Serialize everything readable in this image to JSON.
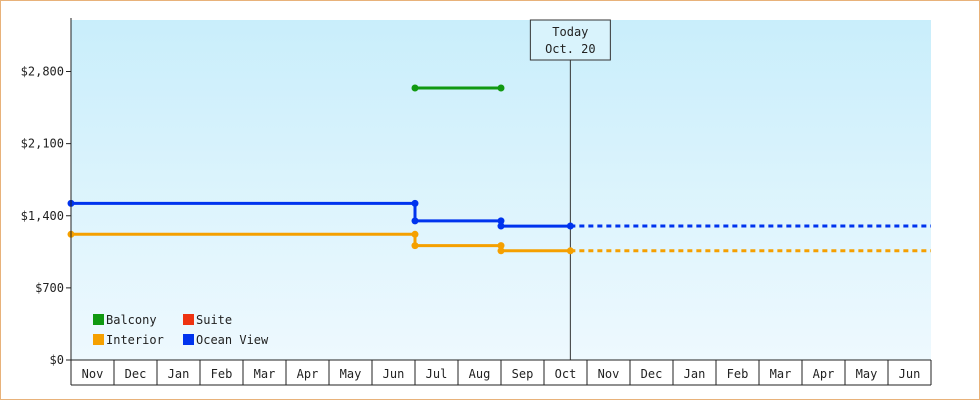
{
  "chart_data": {
    "type": "line",
    "title": "",
    "xlabel": "",
    "ylabel": "",
    "ylim": [
      0,
      3300
    ],
    "y_ticks": [
      {
        "value": 0,
        "label": "$0"
      },
      {
        "value": 700,
        "label": "$700"
      },
      {
        "value": 1400,
        "label": "$1,400"
      },
      {
        "value": 2100,
        "label": "$2,100"
      },
      {
        "value": 2800,
        "label": "$2,800"
      }
    ],
    "x_months": [
      "Nov",
      "Dec",
      "Jan",
      "Feb",
      "Mar",
      "Apr",
      "May",
      "Jun",
      "Jul",
      "Aug",
      "Sep",
      "Oct",
      "Nov",
      "Dec",
      "Jan",
      "Feb",
      "Mar",
      "Apr",
      "May",
      "Jun"
    ],
    "x_start": "2023-11-01",
    "x_end": "2025-07-01",
    "today": {
      "title": "Today",
      "date_label": "Oct. 20",
      "date": "2024-10-20"
    },
    "legend": [
      {
        "name": "Balcony",
        "color": "#119911"
      },
      {
        "name": "Suite",
        "color": "#ee3311"
      },
      {
        "name": "Interior",
        "color": "#f5a000"
      },
      {
        "name": "Ocean View",
        "color": "#0033ee"
      }
    ],
    "series": [
      {
        "name": "Balcony",
        "color": "#119911",
        "points": [
          {
            "x": "2024-07-01",
            "y": 2640
          },
          {
            "x": "2024-09-01",
            "y": 2640
          }
        ],
        "projected_y": null
      },
      {
        "name": "Suite",
        "color": "#ee3311",
        "points": [],
        "projected_y": null
      },
      {
        "name": "Interior",
        "color": "#f5a000",
        "points": [
          {
            "x": "2023-11-01",
            "y": 1220
          },
          {
            "x": "2024-07-01",
            "y": 1220
          },
          {
            "x": "2024-07-01",
            "y": 1110
          },
          {
            "x": "2024-09-01",
            "y": 1110
          },
          {
            "x": "2024-09-01",
            "y": 1060
          },
          {
            "x": "2024-10-20",
            "y": 1060
          }
        ],
        "projected_y": 1060
      },
      {
        "name": "Ocean View",
        "color": "#0033ee",
        "points": [
          {
            "x": "2023-11-01",
            "y": 1520
          },
          {
            "x": "2024-07-01",
            "y": 1520
          },
          {
            "x": "2024-07-01",
            "y": 1350
          },
          {
            "x": "2024-09-01",
            "y": 1350
          },
          {
            "x": "2024-09-01",
            "y": 1300
          },
          {
            "x": "2024-10-20",
            "y": 1300
          }
        ],
        "projected_y": 1300
      }
    ]
  }
}
